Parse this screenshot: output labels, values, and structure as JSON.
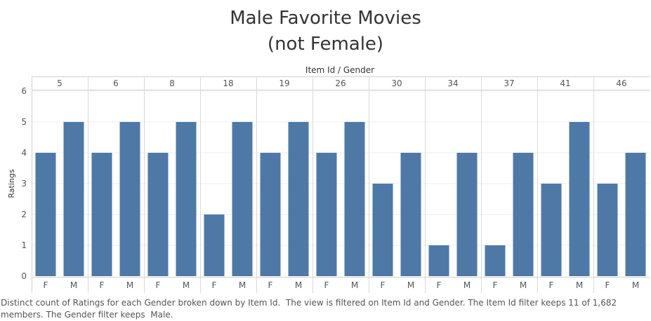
{
  "chart_data": {
    "type": "bar",
    "title": [
      "Male Favorite Movies",
      "(not Female)"
    ],
    "header_label": "Item Id  /  Gender",
    "ylabel": "Ratings",
    "ylim": [
      0,
      6
    ],
    "yticks": [
      0,
      1,
      2,
      3,
      4,
      5,
      6
    ],
    "groups": [
      "5",
      "6",
      "8",
      "18",
      "19",
      "26",
      "30",
      "34",
      "37",
      "41",
      "46"
    ],
    "categories": [
      "F",
      "M"
    ],
    "values": [
      [
        4,
        5
      ],
      [
        4,
        5
      ],
      [
        4,
        5
      ],
      [
        2,
        5
      ],
      [
        4,
        5
      ],
      [
        4,
        5
      ],
      [
        3,
        4
      ],
      [
        1,
        4
      ],
      [
        1,
        4
      ],
      [
        3,
        5
      ],
      [
        3,
        4
      ]
    ],
    "bar_color": "#4e79a7",
    "caption": "Distinct count of Ratings for each Gender broken down by Item Id.  The view is filtered on Item Id and Gender. The Item Id filter keeps 11 of 1,682 members. The Gender filter keeps  Male."
  }
}
